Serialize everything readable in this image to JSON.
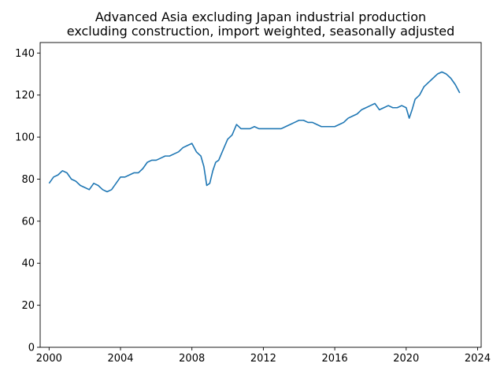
{
  "chart_data": {
    "type": "line",
    "title_line1": "Advanced Asia excluding Japan industrial production",
    "title_line2": "excluding construction, import weighted, seasonally adjusted",
    "xlabel": "",
    "ylabel": "",
    "xlim": [
      1999.5,
      2024.2
    ],
    "ylim": [
      0,
      145
    ],
    "x_ticks": [
      2000,
      2004,
      2008,
      2012,
      2016,
      2020,
      2024
    ],
    "x_tick_labels": [
      "2000",
      "2004",
      "2008",
      "2012",
      "2016",
      "2020",
      "2024"
    ],
    "y_ticks": [
      0,
      20,
      40,
      60,
      80,
      100,
      120,
      140
    ],
    "y_tick_labels": [
      "0",
      "20",
      "40",
      "60",
      "80",
      "100",
      "120",
      "140"
    ],
    "grid": false,
    "line_color": "#1f77b4",
    "series": [
      {
        "x": [
          2000.0,
          2000.25,
          2000.5,
          2000.75,
          2001.0,
          2001.25,
          2001.5,
          2001.75,
          2002.0,
          2002.25,
          2002.5,
          2002.75,
          2003.0,
          2003.25,
          2003.5,
          2003.75,
          2004.0,
          2004.25,
          2004.5,
          2004.75,
          2005.0,
          2005.25,
          2005.5,
          2005.75,
          2006.0,
          2006.25,
          2006.5,
          2006.75,
          2007.0,
          2007.25,
          2007.5,
          2007.75,
          2008.0,
          2008.25,
          2008.5,
          2008.67,
          2008.83,
          2009.0,
          2009.17,
          2009.33,
          2009.5,
          2009.75,
          2010.0,
          2010.25,
          2010.5,
          2010.75,
          2011.0,
          2011.25,
          2011.5,
          2011.75,
          2012.0,
          2012.25,
          2012.5,
          2012.75,
          2013.0,
          2013.25,
          2013.5,
          2013.75,
          2014.0,
          2014.25,
          2014.5,
          2014.75,
          2015.0,
          2015.25,
          2015.5,
          2015.75,
          2016.0,
          2016.25,
          2016.5,
          2016.75,
          2017.0,
          2017.25,
          2017.5,
          2017.75,
          2018.0,
          2018.25,
          2018.5,
          2018.75,
          2019.0,
          2019.25,
          2019.5,
          2019.75,
          2020.0,
          2020.17,
          2020.33,
          2020.5,
          2020.75,
          2021.0,
          2021.25,
          2021.5,
          2021.75,
          2022.0,
          2022.25,
          2022.5,
          2022.75,
          2023.0
        ],
        "y": [
          78,
          81,
          82,
          84,
          83,
          80,
          79,
          77,
          76,
          75,
          78,
          77,
          75,
          74,
          75,
          78,
          81,
          81,
          82,
          83,
          83,
          85,
          88,
          89,
          89,
          90,
          91,
          91,
          92,
          93,
          95,
          96,
          97,
          93,
          91,
          86,
          77,
          78,
          84,
          88,
          89,
          94,
          99,
          101,
          106,
          104,
          104,
          104,
          105,
          104,
          104,
          104,
          104,
          104,
          104,
          105,
          106,
          107,
          108,
          108,
          107,
          107,
          106,
          105,
          105,
          105,
          105,
          106,
          107,
          109,
          110,
          111,
          113,
          114,
          115,
          116,
          113,
          114,
          115,
          114,
          114,
          115,
          114,
          109,
          113,
          118,
          120,
          124,
          126,
          128,
          130,
          131,
          130,
          128,
          125,
          121
        ]
      }
    ]
  }
}
